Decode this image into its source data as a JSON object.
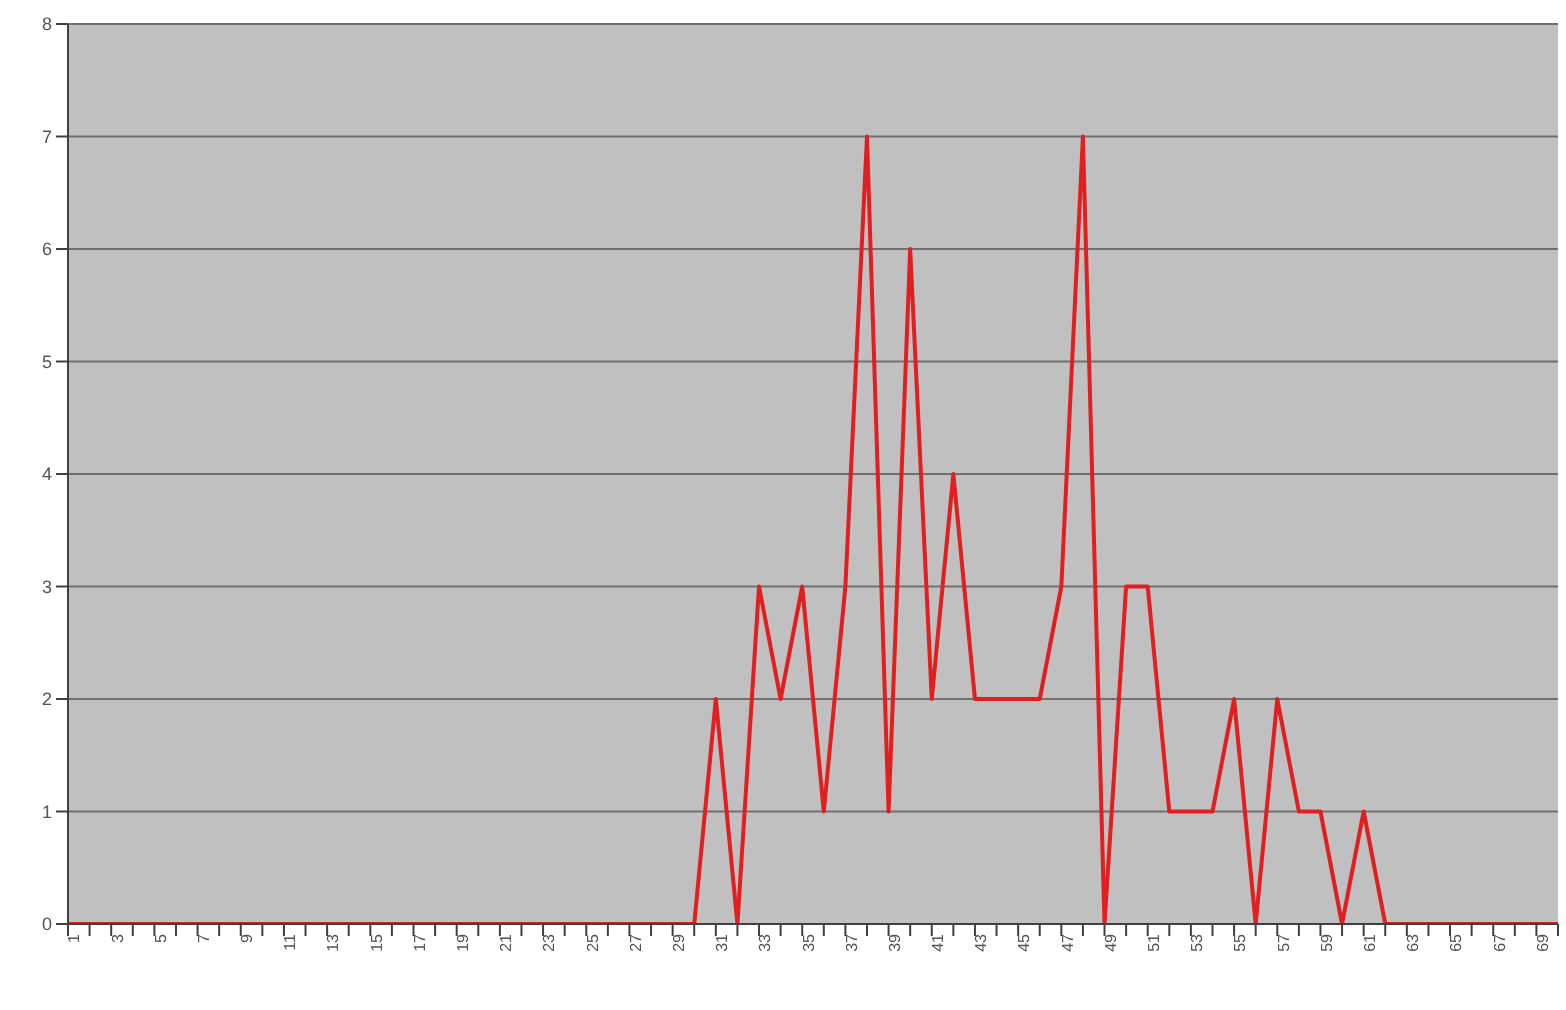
{
  "chart_data": {
    "type": "line",
    "categories": [
      "1",
      null,
      "3",
      null,
      "5",
      null,
      "7",
      null,
      "9",
      null,
      "11",
      null,
      "13",
      null,
      "15",
      null,
      "17",
      null,
      "19",
      null,
      "21",
      null,
      "23",
      null,
      "25",
      null,
      "27",
      null,
      "29",
      null,
      "31",
      null,
      "33",
      null,
      "35",
      null,
      "37",
      null,
      "39",
      null,
      "41",
      null,
      "43",
      null,
      "45",
      null,
      "47",
      null,
      "49",
      null,
      "51",
      null,
      "53",
      null,
      "55",
      null,
      "57",
      null,
      "59",
      null,
      "61",
      null,
      "63",
      null,
      "65",
      null,
      "67",
      null,
      "69",
      null
    ],
    "series": [
      {
        "color": "#e02020",
        "values": [
          0,
          0,
          0,
          0,
          0,
          0,
          0,
          0,
          0,
          0,
          0,
          0,
          0,
          0,
          0,
          0,
          0,
          0,
          0,
          0,
          0,
          0,
          0,
          0,
          0,
          0,
          0,
          0,
          0,
          0,
          2,
          0,
          3,
          2,
          3,
          1,
          3,
          7,
          1,
          6,
          2,
          4,
          2,
          2,
          2,
          2,
          3,
          7,
          0,
          3,
          3,
          1,
          1,
          1,
          2,
          0,
          2,
          1,
          1,
          0,
          1,
          0,
          0,
          0,
          0,
          0,
          0,
          0,
          0,
          0
        ]
      }
    ],
    "ylim": [
      0,
      8
    ],
    "yticks": [
      0,
      1,
      2,
      3,
      4,
      5,
      6,
      7,
      8
    ],
    "grid": "y",
    "marker": "none",
    "line_style": "solid"
  }
}
